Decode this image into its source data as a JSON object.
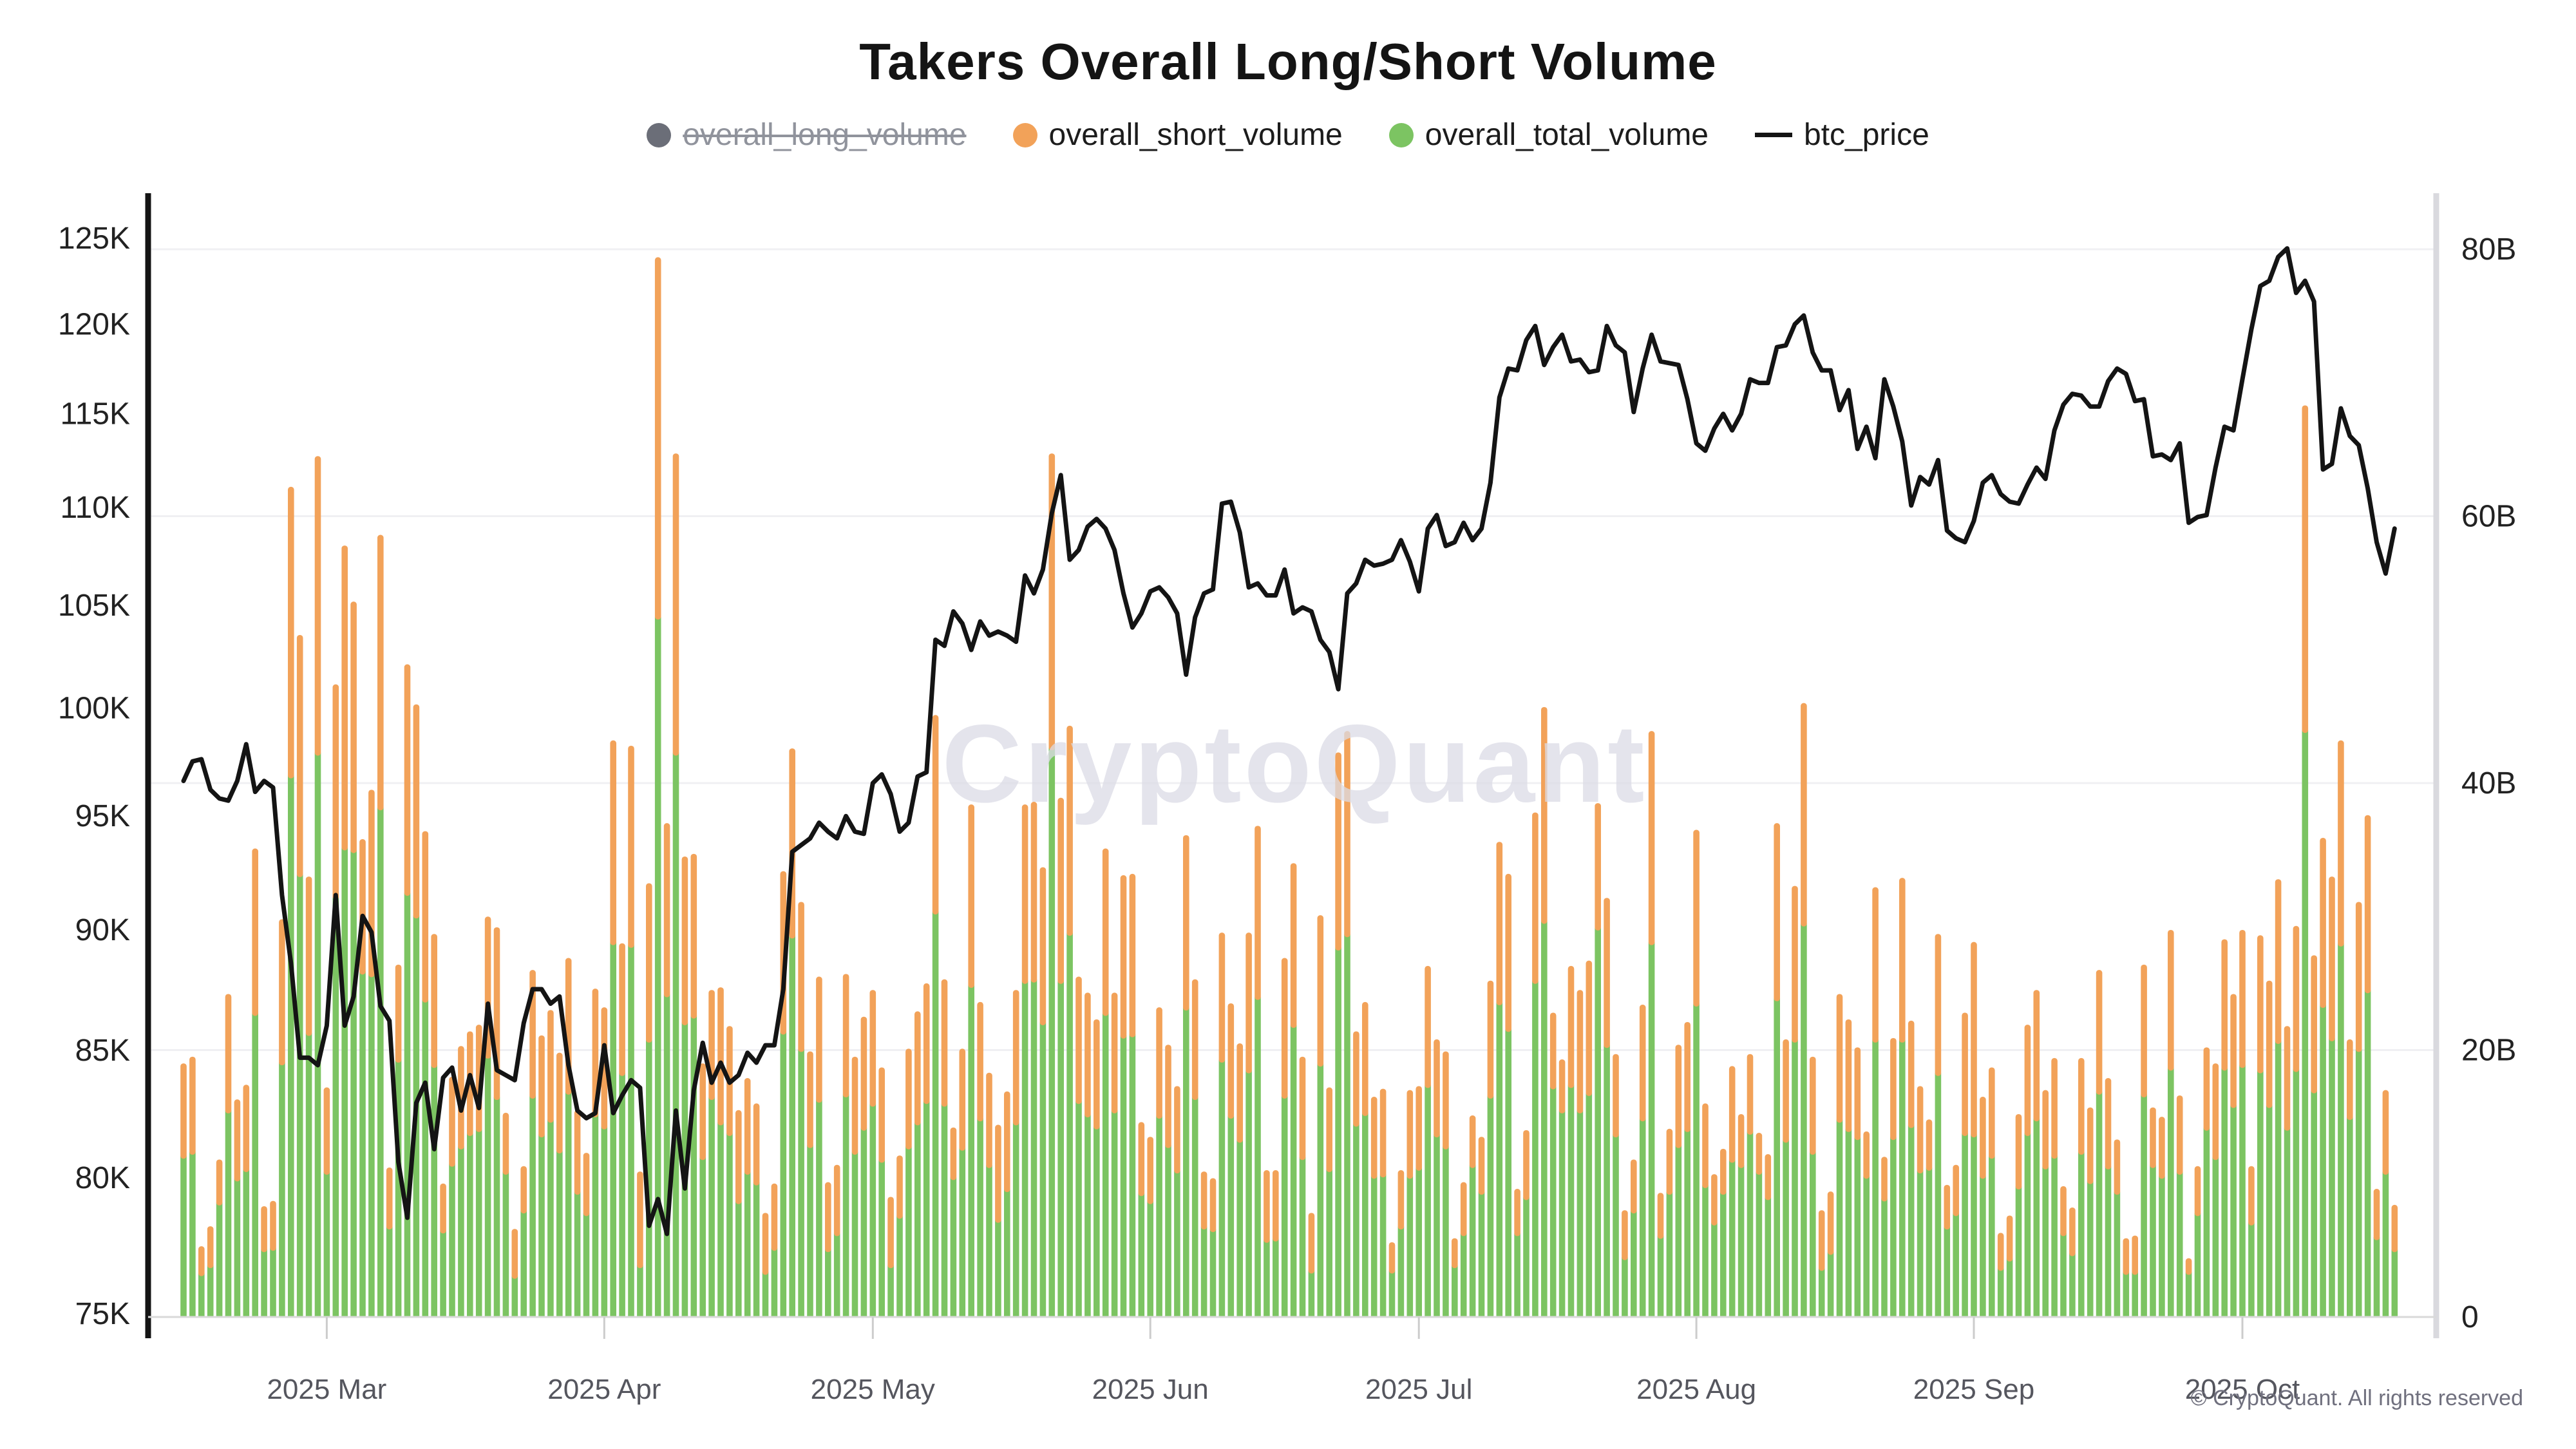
{
  "title": "Takers Overall Long/Short Volume",
  "watermark": "CryptoQuant",
  "copyright": "© CryptoQuant. All rights reserved",
  "legend": [
    {
      "label": "overall_long_volume",
      "marker": "circle",
      "color": "#6b6e78",
      "disabled": true
    },
    {
      "label": "overall_short_volume",
      "marker": "circle",
      "color": "#F2A259",
      "disabled": false
    },
    {
      "label": "overall_total_volume",
      "marker": "circle",
      "color": "#7CC462",
      "disabled": false
    },
    {
      "label": "btc_price",
      "marker": "line",
      "color": "#141414",
      "disabled": false
    }
  ],
  "colors": {
    "bar_short": "#F2A259",
    "bar_total": "#7CC462",
    "price_line": "#141414",
    "left_axis_line": "#141414",
    "right_axis_line": "#d9d9de",
    "baseline": "#d9d9d9",
    "gridline": "#f0f0f3",
    "tick_mark": "#cccccc",
    "axis_label": "#222222",
    "x_label": "#55565e",
    "watermark": "#dcdce6"
  },
  "chart_data": {
    "type": "bar",
    "note": "stacked daily bars (total_volume green base + short_volume orange top, long_volume hidden/disabled) with btc_price line on log-scaled left axis",
    "left_axis": {
      "scale": "log",
      "min_k": 75,
      "max_k": 125,
      "tick_labels": [
        "75K",
        "80K",
        "85K",
        "90K",
        "95K",
        "100K",
        "105K",
        "110K",
        "115K",
        "120K",
        "125K"
      ],
      "tick_values_k": [
        75,
        80,
        85,
        90,
        95,
        100,
        105,
        110,
        115,
        120,
        125
      ]
    },
    "right_axis": {
      "scale": "linear",
      "min_b": 0,
      "max_b": 80,
      "tick_labels": [
        "0",
        "20B",
        "40B",
        "60B",
        "80B"
      ],
      "tick_values_b": [
        0,
        20,
        40,
        60,
        80
      ]
    },
    "x_axis": {
      "tick_labels": [
        "2025 Mar",
        "2025 Apr",
        "2025 May",
        "2025 Jun",
        "2025 Jul",
        "2025 Aug",
        "2025 Sep",
        "2025 Oct"
      ],
      "tick_bar_indices": [
        16,
        47,
        77,
        108,
        138,
        169,
        200,
        230
      ]
    },
    "legend_position": "top",
    "grid_on": true,
    "series": [
      {
        "name": "overall_long_volume",
        "type": "bar",
        "color": "#6b6e78",
        "disabled": true,
        "values_b": []
      },
      {
        "name": "overall_total_volume",
        "type": "bar",
        "stack": "vol",
        "order": 0,
        "color": "#7CC462",
        "unit": "billion USD",
        "values_b": [
          12.1,
          12.4,
          3.3,
          3.9,
          8.6,
          15.5,
          10.4,
          11.1,
          22.8,
          5.1,
          5.2,
          19.1,
          40.6,
          33.2,
          21.3,
          42.3,
          10.9,
          31.5,
          35.2,
          35.0,
          25.9,
          25.7,
          38.2,
          6.8,
          19.3,
          31.8,
          30.1,
          23.8,
          18.9,
          6.5,
          11.5,
          12.8,
          13.8,
          14.1,
          19.6,
          16.5,
          10.9,
          3.1,
          8.0,
          16.6,
          13.7,
          14.8,
          12.5,
          16.9,
          9.4,
          7.8,
          15.2,
          14.3,
          28.1,
          18.3,
          27.9,
          3.9,
          20.8,
          52.5,
          24.2,
          42.3,
          22.1,
          22.6,
          12.0,
          16.5,
          14.6,
          13.8,
          8.7,
          10.9,
          10.1,
          3.4,
          5.2,
          21.4,
          28.6,
          20.1,
          12.9,
          16.3,
          5.1,
          6.3,
          16.7,
          12.4,
          14.2,
          16.0,
          11.8,
          3.9,
          7.6,
          12.8,
          14.6,
          16.2,
          30.4,
          16.0,
          10.5,
          12.7,
          24.9,
          14.9,
          11.4,
          7.3,
          9.6,
          14.6,
          25.2,
          25.3,
          22.1,
          42.7,
          25.2,
          28.8,
          16.2,
          15.2,
          14.3,
          22.8,
          15.5,
          21.1,
          21.2,
          9.3,
          8.7,
          15.1,
          12.9,
          11.0,
          23.2,
          16.5,
          6.8,
          6.6,
          19.3,
          15.1,
          13.3,
          18.5,
          24.0,
          5.8,
          5.9,
          16.6,
          21.9,
          12.0,
          3.5,
          19.0,
          11.1,
          27.7,
          28.7,
          14.5,
          15.3,
          10.6,
          10.7,
          3.5,
          6.8,
          10.6,
          11.2,
          17.4,
          13.7,
          12.8,
          3.9,
          6.3,
          11.4,
          9.4,
          16.6,
          23.6,
          21.6,
          6.3,
          9.0,
          25.2,
          29.7,
          17.3,
          15.5,
          17.4,
          15.5,
          16.8,
          29.2,
          20.4,
          13.7,
          4.5,
          8.0,
          14.9,
          28.1,
          6.1,
          9.4,
          12.9,
          14.1,
          23.5,
          9.9,
          7.1,
          9.4,
          11.8,
          11.4,
          13.9,
          10.9,
          9.0,
          23.9,
          13.3,
          20.8,
          29.5,
          12.4,
          3.7,
          4.9,
          14.8,
          14.1,
          13.5,
          10.6,
          20.8,
          8.9,
          13.5,
          20.8,
          14.4,
          11.0,
          11.2,
          18.3,
          6.8,
          7.8,
          13.8,
          13.7,
          10.6,
          12.1,
          3.7,
          4.4,
          9.8,
          13.8,
          14.9,
          11.3,
          12.1,
          6.3,
          4.8,
          12.4,
          10.2,
          16.9,
          11.3,
          9.4,
          3.4,
          3.4,
          16.7,
          11.4,
          10.6,
          18.7,
          10.9,
          3.4,
          7.8,
          14.2,
          12.0,
          18.7,
          15.9,
          18.9,
          7.1,
          18.5,
          15.9,
          20.7,
          14.2,
          18.6,
          44.0,
          17.0,
          23.4,
          20.9,
          28.0,
          15.0,
          20.1,
          24.5,
          6.0,
          10.9,
          5.1
        ]
      },
      {
        "name": "overall_short_volume",
        "type": "bar",
        "stack": "vol",
        "order": 1,
        "color": "#F2A259",
        "unit": "billion USD",
        "values_b": [
          6.9,
          7.1,
          2.0,
          2.9,
          3.2,
          8.7,
          5.9,
          6.3,
          12.3,
          3.2,
          3.5,
          10.7,
          21.6,
          17.9,
          11.7,
          22.2,
          6.3,
          15.9,
          22.6,
          18.6,
          9.9,
          13.8,
          20.4,
          4.4,
          7.1,
          17.1,
          15.8,
          12.6,
          9.8,
          3.5,
          6.5,
          7.5,
          7.6,
          7.8,
          10.4,
          12.7,
          4.4,
          3.5,
          3.3,
          9.4,
          7.4,
          8.2,
          7.3,
          10.0,
          6.1,
          4.5,
          9.4,
          8.9,
          15.1,
          9.7,
          14.9,
          7.0,
          11.7,
          26.9,
          12.8,
          22.4,
          12.4,
          12.1,
          7.0,
          8.0,
          10.1,
          8.0,
          6.8,
          7.0,
          5.9,
          4.4,
          4.8,
          12.0,
          14.0,
          11.0,
          7.0,
          9.2,
          5.0,
          5.1,
          9.0,
          7.1,
          8.3,
          8.5,
          6.9,
          5.1,
          4.5,
          7.3,
          8.3,
          8.8,
          14.7,
          9.3,
          3.7,
          7.4,
          13.5,
          8.7,
          6.9,
          7.1,
          7.3,
          9.9,
          13.2,
          13.3,
          11.6,
          22.0,
          13.7,
          15.5,
          9.3,
          9.1,
          8.0,
          12.3,
          8.8,
          12.0,
          12.0,
          5.3,
          4.8,
          8.1,
          7.5,
          6.3,
          12.9,
          8.8,
          4.1,
          3.8,
          9.5,
          8.4,
          7.2,
          10.3,
          12.8,
          5.2,
          5.1,
          10.3,
          12.1,
          7.5,
          4.3,
          11.1,
          6.1,
          14.6,
          15.2,
          6.9,
          8.3,
          5.9,
          6.4,
          2.1,
          4.2,
          6.4,
          6.1,
          8.9,
          7.1,
          7.1,
          2.0,
          3.8,
          3.7,
          4.1,
          8.6,
          12.0,
          11.6,
          3.3,
          5.0,
          12.6,
          16.0,
          5.5,
          3.8,
          8.9,
          9.0,
          9.9,
          9.3,
          11.0,
          6.0,
          3.5,
          3.8,
          8.5,
          15.8,
          3.2,
          4.7,
          7.5,
          8.0,
          13.0,
          6.1,
          3.6,
          3.2,
          7.0,
          3.8,
          5.8,
          2.9,
          3.2,
          13.1,
          7.5,
          11.5,
          16.5,
          7.1,
          4.3,
          4.5,
          9.4,
          8.2,
          6.7,
          3.3,
          11.4,
          3.1,
          7.4,
          12.1,
          7.8,
          6.3,
          3.6,
          10.4,
          3.1,
          3.6,
          9.0,
          14.4,
          5.9,
          6.6,
          2.6,
          3.2,
          5.4,
          8.1,
          9.6,
          5.7,
          7.3,
          3.5,
          3.4,
          7.0,
          5.5,
          9.1,
          6.6,
          3.9,
          2.5,
          2.7,
          9.7,
          4.3,
          4.4,
          10.3,
          5.7,
          1.0,
          3.5,
          6.0,
          7.0,
          9.6,
          8.3,
          10.1,
          4.2,
          10.1,
          9.3,
          12.1,
          7.6,
          10.7,
          24.3,
          10.1,
          12.5,
          12.1,
          15.2,
          5.8,
          11.0,
          13.1,
          3.6,
          6.1,
          3.3
        ]
      },
      {
        "name": "btc_price",
        "type": "line",
        "axis": "left",
        "color": "#141414",
        "unit": "thousand USD",
        "values_k": [
          96.6,
          97.5,
          97.6,
          96.2,
          95.8,
          95.7,
          96.6,
          98.3,
          96.1,
          96.6,
          96.3,
          91.5,
          88.6,
          84.7,
          84.7,
          84.4,
          86.0,
          91.5,
          86.0,
          87.2,
          90.6,
          89.9,
          86.8,
          86.2,
          80.6,
          78.5,
          82.9,
          83.7,
          81.1,
          83.9,
          84.3,
          82.6,
          84.0,
          82.7,
          86.9,
          84.2,
          84.0,
          83.8,
          86.1,
          87.5,
          87.5,
          86.9,
          87.2,
          84.4,
          82.6,
          82.3,
          82.5,
          85.2,
          82.5,
          83.2,
          83.8,
          83.5,
          78.2,
          79.2,
          77.9,
          82.6,
          79.6,
          83.4,
          85.3,
          83.7,
          84.5,
          83.7,
          84.0,
          84.9,
          84.5,
          85.2,
          85.2,
          87.5,
          93.4,
          93.7,
          94.0,
          94.7,
          94.3,
          94.0,
          95.0,
          94.3,
          94.2,
          96.5,
          96.9,
          96.0,
          94.3,
          94.7,
          96.8,
          97.0,
          103.3,
          103.0,
          104.7,
          104.1,
          102.8,
          104.2,
          103.5,
          103.7,
          103.5,
          103.2,
          106.5,
          105.6,
          106.8,
          109.7,
          111.7,
          107.3,
          107.8,
          109.0,
          109.4,
          108.9,
          107.8,
          105.6,
          103.9,
          104.6,
          105.7,
          105.9,
          105.4,
          104.6,
          101.6,
          104.4,
          105.6,
          105.8,
          110.2,
          110.3,
          108.7,
          105.9,
          106.1,
          105.5,
          105.5,
          106.8,
          104.6,
          104.9,
          104.7,
          103.3,
          102.7,
          100.9,
          105.6,
          106.1,
          107.3,
          107.0,
          107.1,
          107.3,
          108.3,
          107.2,
          105.7,
          108.9,
          109.6,
          108.0,
          108.2,
          109.2,
          108.3,
          108.9,
          111.3,
          115.9,
          117.5,
          117.4,
          119.1,
          119.9,
          117.7,
          118.7,
          119.4,
          117.9,
          118.0,
          117.3,
          117.4,
          119.9,
          118.8,
          118.4,
          115.1,
          117.5,
          119.4,
          117.9,
          117.8,
          117.7,
          115.8,
          113.4,
          113.0,
          114.2,
          115.0,
          114.1,
          115.0,
          116.9,
          116.7,
          116.7,
          118.7,
          118.8,
          120.0,
          120.5,
          118.4,
          117.4,
          117.4,
          115.2,
          116.3,
          113.1,
          114.3,
          112.6,
          116.9,
          115.4,
          113.5,
          110.1,
          111.6,
          111.2,
          112.5,
          108.8,
          108.4,
          108.2,
          109.3,
          111.3,
          111.7,
          110.7,
          110.3,
          110.2,
          111.2,
          112.1,
          111.5,
          114.1,
          115.5,
          116.1,
          116.0,
          115.4,
          115.4,
          116.8,
          117.5,
          117.2,
          115.7,
          115.8,
          112.7,
          112.8,
          112.5,
          113.4,
          109.2,
          109.5,
          109.6,
          112.1,
          114.3,
          114.1,
          116.9,
          119.7,
          122.2,
          122.5,
          123.9,
          124.4,
          121.8,
          122.5,
          121.3,
          112.0,
          112.3,
          115.3,
          113.8,
          113.3,
          111.0,
          108.2,
          106.6,
          108.9
        ]
      }
    ]
  }
}
